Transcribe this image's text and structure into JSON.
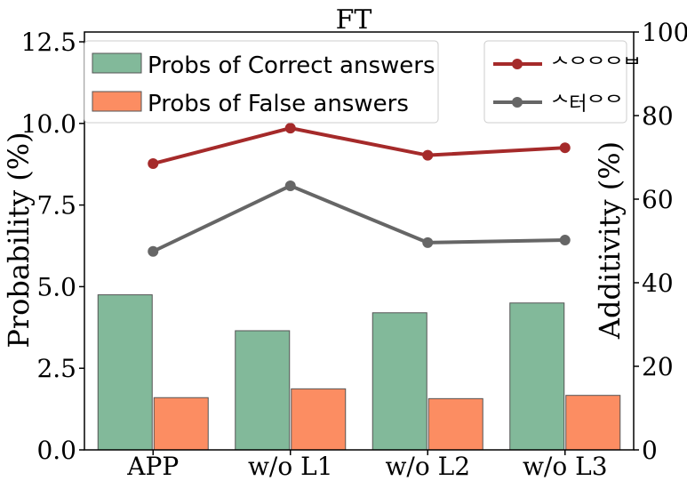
{
  "chart_data": {
    "type": "bar",
    "title": "FT",
    "categories": [
      "APP",
      "w/o L1",
      "w/o L2",
      "w/o L3"
    ],
    "ylabel": "Probability (%)",
    "y2label": "Additivity (%)",
    "ylim": [
      0,
      12.8
    ],
    "y2lim": [
      0,
      100
    ],
    "yticks": [
      "0.0",
      "2.5",
      "5.0",
      "7.5",
      "10.0",
      "12.5"
    ],
    "y2ticks": [
      "0",
      "20",
      "40",
      "60",
      "80",
      "100"
    ],
    "grid": false,
    "bar_series": [
      {
        "name": "Probs of Correct answers",
        "color": "#82b99a",
        "values": [
          4.75,
          3.65,
          4.2,
          4.5
        ]
      },
      {
        "name": "Probs of False answers",
        "color": "#fc8d62",
        "values": [
          1.6,
          1.87,
          1.57,
          1.67
        ]
      }
    ],
    "line_series": [
      {
        "name": "ᄉᄋᄋᄋᄇ",
        "color": "#a52a2a",
        "values": [
          68.5,
          77.0,
          70.5,
          72.3
        ]
      },
      {
        "name": "ᄉ터ᄋᄋ",
        "color": "#666666",
        "values": [
          47.5,
          63.2,
          49.6,
          50.2
        ]
      }
    ],
    "legend_bars_placement": "top-left",
    "legend_lines_placement": "top-right"
  }
}
